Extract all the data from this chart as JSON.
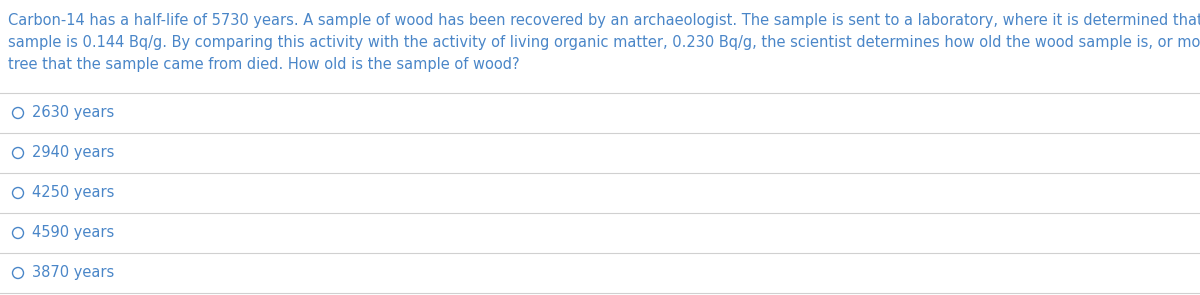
{
  "question_lines": [
    "Carbon-14 has a half-life of 5730 years. A sample of wood has been recovered by an archaeologist. The sample is sent to a laboratory, where it is determined that the activity of the",
    "sample is 0.144 Bq/g. By comparing this activity with the activity of living organic matter, 0.230 Bq/g, the scientist determines how old the wood sample is, or more precisely, when the",
    "tree that the sample came from died. How old is the sample of wood?"
  ],
  "options": [
    "2630 years",
    "2940 years",
    "4250 years",
    "4590 years",
    "3870 years"
  ],
  "text_color": "#4a86c8",
  "bg_color": "#ffffff",
  "line_color": "#d0d0d0",
  "font_size_question": 10.5,
  "font_size_options": 10.5
}
